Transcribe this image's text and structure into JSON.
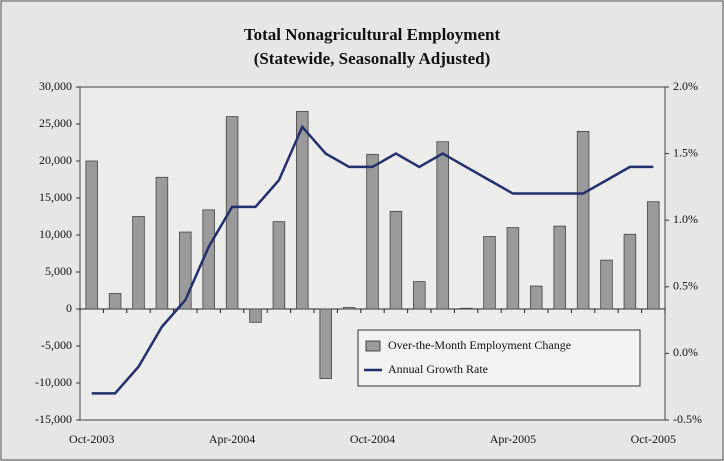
{
  "chart_data": {
    "type": "bar",
    "title": "Total Nonagricultural Employment",
    "subtitle": "(Statewide, Seasonally Adjusted)",
    "categories": [
      "Oct-2003",
      null,
      null,
      null,
      null,
      null,
      "Apr-2004",
      null,
      null,
      null,
      null,
      null,
      "Oct-2004",
      null,
      null,
      null,
      null,
      null,
      "Apr-2005",
      null,
      null,
      null,
      null,
      null,
      "Oct-2005"
    ],
    "series": [
      {
        "name": "Over-the-Month Employment Change",
        "type": "bar",
        "color": "#9a9a9a",
        "axis": "y",
        "values": [
          20000,
          2100,
          12500,
          17800,
          10400,
          13400,
          26000,
          -1800,
          11800,
          26700,
          -9400,
          200,
          20900,
          13200,
          3700,
          22600,
          100,
          9800,
          11000,
          3100,
          11200,
          24000,
          6600,
          10100,
          14500
        ]
      },
      {
        "name": "Annual Growth Rate",
        "type": "line",
        "color": "#22306e",
        "axis": "y2",
        "values": [
          -0.3,
          -0.3,
          -0.1,
          0.2,
          0.4,
          0.8,
          1.1,
          1.1,
          1.3,
          1.7,
          1.5,
          1.4,
          1.4,
          1.5,
          1.4,
          1.5,
          1.4,
          1.3,
          1.2,
          1.2,
          1.2,
          1.2,
          1.3,
          1.4,
          1.4
        ]
      }
    ],
    "ylim": [
      -15000,
      30000
    ],
    "yticks": [
      {
        "value": -15000,
        "label": "-15,000"
      },
      {
        "value": -10000,
        "label": "-10,000"
      },
      {
        "value": -5000,
        "label": "-5,000"
      },
      0,
      {
        "value": 5000,
        "label": "5,000"
      },
      {
        "value": 10000,
        "label": "10,000"
      },
      {
        "value": 15000,
        "label": "15,000"
      },
      {
        "value": 20000,
        "label": "20,000"
      },
      {
        "value": 25000,
        "label": "25,000"
      },
      {
        "value": 30000,
        "label": "30,000"
      }
    ],
    "y2lim": [
      -0.5,
      2.0
    ],
    "y2ticks": [
      {
        "value": -0.5,
        "label": "-0.5%"
      },
      {
        "value": 0.0,
        "label": "0.0%"
      },
      {
        "value": 0.5,
        "label": "0.5%"
      },
      {
        "value": 1.0,
        "label": "1.0%"
      },
      {
        "value": 1.5,
        "label": "1.5%"
      },
      {
        "value": 2.0,
        "label": "2.0%"
      }
    ],
    "legend": "lower right"
  }
}
